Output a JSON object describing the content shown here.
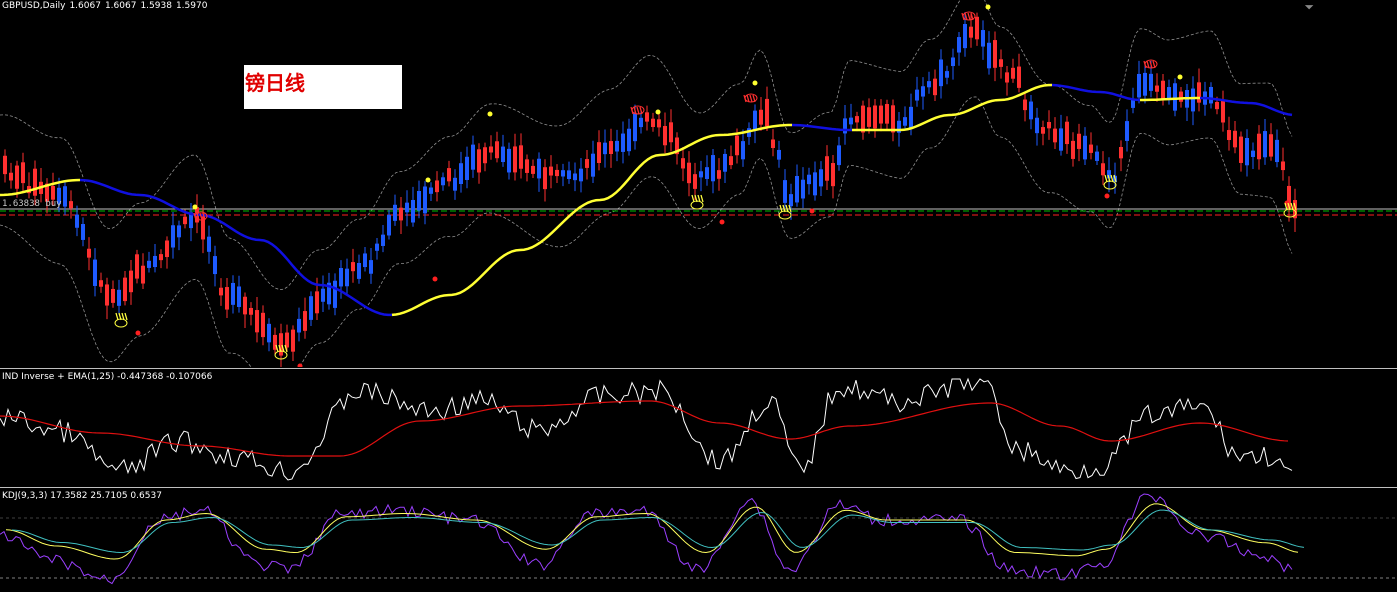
{
  "main_header": {
    "symbol_tf": "GBPUSD,Daily",
    "ohlc": [
      "1.6067",
      "1.6067",
      "1.5938",
      "1.5970"
    ]
  },
  "note": {
    "text": "镑日线"
  },
  "price_tag": {
    "text": "1.63838  buy"
  },
  "ind_header": {
    "text": "IND Inverse + EMA(1,25) -0.447368 -0.107066"
  },
  "kdj_header": {
    "text": "KDJ(9,3,3) 17.3582 25.7105 0.6537"
  },
  "colors": {
    "bull": "#1e5bff",
    "bear": "#ff3030",
    "ma_rise": "#ffff33",
    "ma_fall": "#1010e0",
    "bands": "#909090",
    "buy_line": "#00c000",
    "sell_line": "#ff2020",
    "ind_line": "#ffffff",
    "ema_line": "#e01010",
    "k_line": "#9b40ff",
    "d_line": "#ffff60",
    "j_line": "#40c0c0"
  },
  "icons": {
    "buy_marker": "hand-up-icon",
    "sell_marker": "hand-down-icon",
    "dot_top": "yellow-dot-icon",
    "dot_bottom": "red-dot-icon"
  }
}
